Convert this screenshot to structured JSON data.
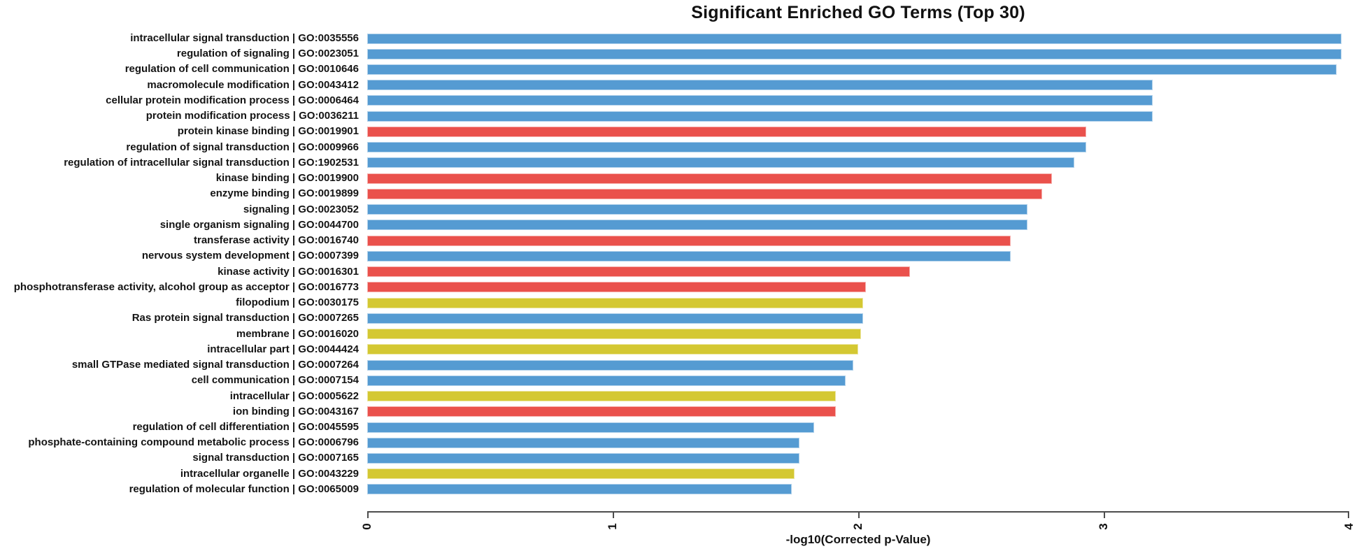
{
  "chart_data": {
    "type": "bar",
    "orientation": "horizontal",
    "title": "Significant Enriched GO Terms (Top 30)",
    "xlabel": "-log10(Corrected p-Value)",
    "xlim": [
      0,
      4
    ],
    "x_ticks": [
      "0",
      "1",
      "2",
      "3",
      "4"
    ],
    "grid": "off",
    "legend": "none",
    "palette": {
      "blue": "#559bd2",
      "red": "#ea514c",
      "yellow": "#d4c832"
    },
    "axis_color": "#4d4d4d",
    "bars": [
      {
        "label": "intracellular signal transduction | GO:0035556",
        "value": 3.97,
        "color": "blue"
      },
      {
        "label": "regulation of signaling | GO:0023051",
        "value": 3.97,
        "color": "blue"
      },
      {
        "label": "regulation of cell communication | GO:0010646",
        "value": 3.95,
        "color": "blue"
      },
      {
        "label": "macromolecule modification | GO:0043412",
        "value": 3.2,
        "color": "blue"
      },
      {
        "label": "cellular protein modification process | GO:0006464",
        "value": 3.2,
        "color": "blue"
      },
      {
        "label": "protein modification process | GO:0036211",
        "value": 3.2,
        "color": "blue"
      },
      {
        "label": "protein kinase binding | GO:0019901",
        "value": 2.93,
        "color": "red"
      },
      {
        "label": "regulation of signal transduction | GO:0009966",
        "value": 2.93,
        "color": "blue"
      },
      {
        "label": "regulation of intracellular signal transduction | GO:1902531",
        "value": 2.88,
        "color": "blue"
      },
      {
        "label": "kinase binding | GO:0019900",
        "value": 2.79,
        "color": "red"
      },
      {
        "label": "enzyme binding | GO:0019899",
        "value": 2.75,
        "color": "red"
      },
      {
        "label": "signaling | GO:0023052",
        "value": 2.69,
        "color": "blue"
      },
      {
        "label": "single organism signaling | GO:0044700",
        "value": 2.69,
        "color": "blue"
      },
      {
        "label": "transferase activity | GO:0016740",
        "value": 2.62,
        "color": "red"
      },
      {
        "label": "nervous system development | GO:0007399",
        "value": 2.62,
        "color": "blue"
      },
      {
        "label": "kinase activity | GO:0016301",
        "value": 2.21,
        "color": "red"
      },
      {
        "label": "phosphotransferase activity, alcohol group as acceptor | GO:0016773",
        "value": 2.03,
        "color": "red"
      },
      {
        "label": "filopodium | GO:0030175",
        "value": 2.02,
        "color": "yellow"
      },
      {
        "label": "Ras protein signal transduction | GO:0007265",
        "value": 2.02,
        "color": "blue"
      },
      {
        "label": "membrane | GO:0016020",
        "value": 2.01,
        "color": "yellow"
      },
      {
        "label": "intracellular part | GO:0044424",
        "value": 2.0,
        "color": "yellow"
      },
      {
        "label": "small GTPase mediated signal transduction | GO:0007264",
        "value": 1.98,
        "color": "blue"
      },
      {
        "label": "cell communication | GO:0007154",
        "value": 1.95,
        "color": "blue"
      },
      {
        "label": "intracellular | GO:0005622",
        "value": 1.91,
        "color": "yellow"
      },
      {
        "label": "ion binding | GO:0043167",
        "value": 1.91,
        "color": "red"
      },
      {
        "label": "regulation of cell differentiation | GO:0045595",
        "value": 1.82,
        "color": "blue"
      },
      {
        "label": "phosphate-containing compound metabolic process | GO:0006796",
        "value": 1.76,
        "color": "blue"
      },
      {
        "label": "signal transduction | GO:0007165",
        "value": 1.76,
        "color": "blue"
      },
      {
        "label": "intracellular organelle | GO:0043229",
        "value": 1.74,
        "color": "yellow"
      },
      {
        "label": "regulation of molecular function | GO:0065009",
        "value": 1.73,
        "color": "blue"
      }
    ]
  }
}
